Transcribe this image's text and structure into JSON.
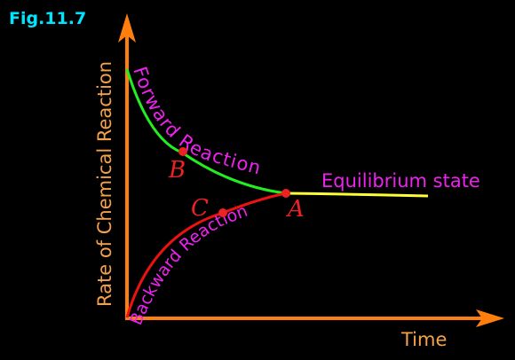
{
  "figure": {
    "label": "Fig.11.7",
    "y_axis_label": "Rate of Chemical Reaction",
    "x_axis_label": "Time",
    "forward_curve_label": "Forward Reaction",
    "backward_curve_label": "Backward Reaction",
    "equilibrium_label": "Equilibrium state",
    "points": {
      "a": "A",
      "b": "B",
      "c": "C"
    }
  },
  "colors": {
    "background": "#000000",
    "figure_label": "#00e5ff",
    "axis": "#ff7f0e",
    "axis_text": "#f5a04a",
    "forward_curve": "#22ee22",
    "backward_curve": "#ee1111",
    "equilibrium_line": "#ffff33",
    "curve_text": "#ee22ee",
    "point": "#ee2222",
    "point_label": "#ee2222"
  }
}
